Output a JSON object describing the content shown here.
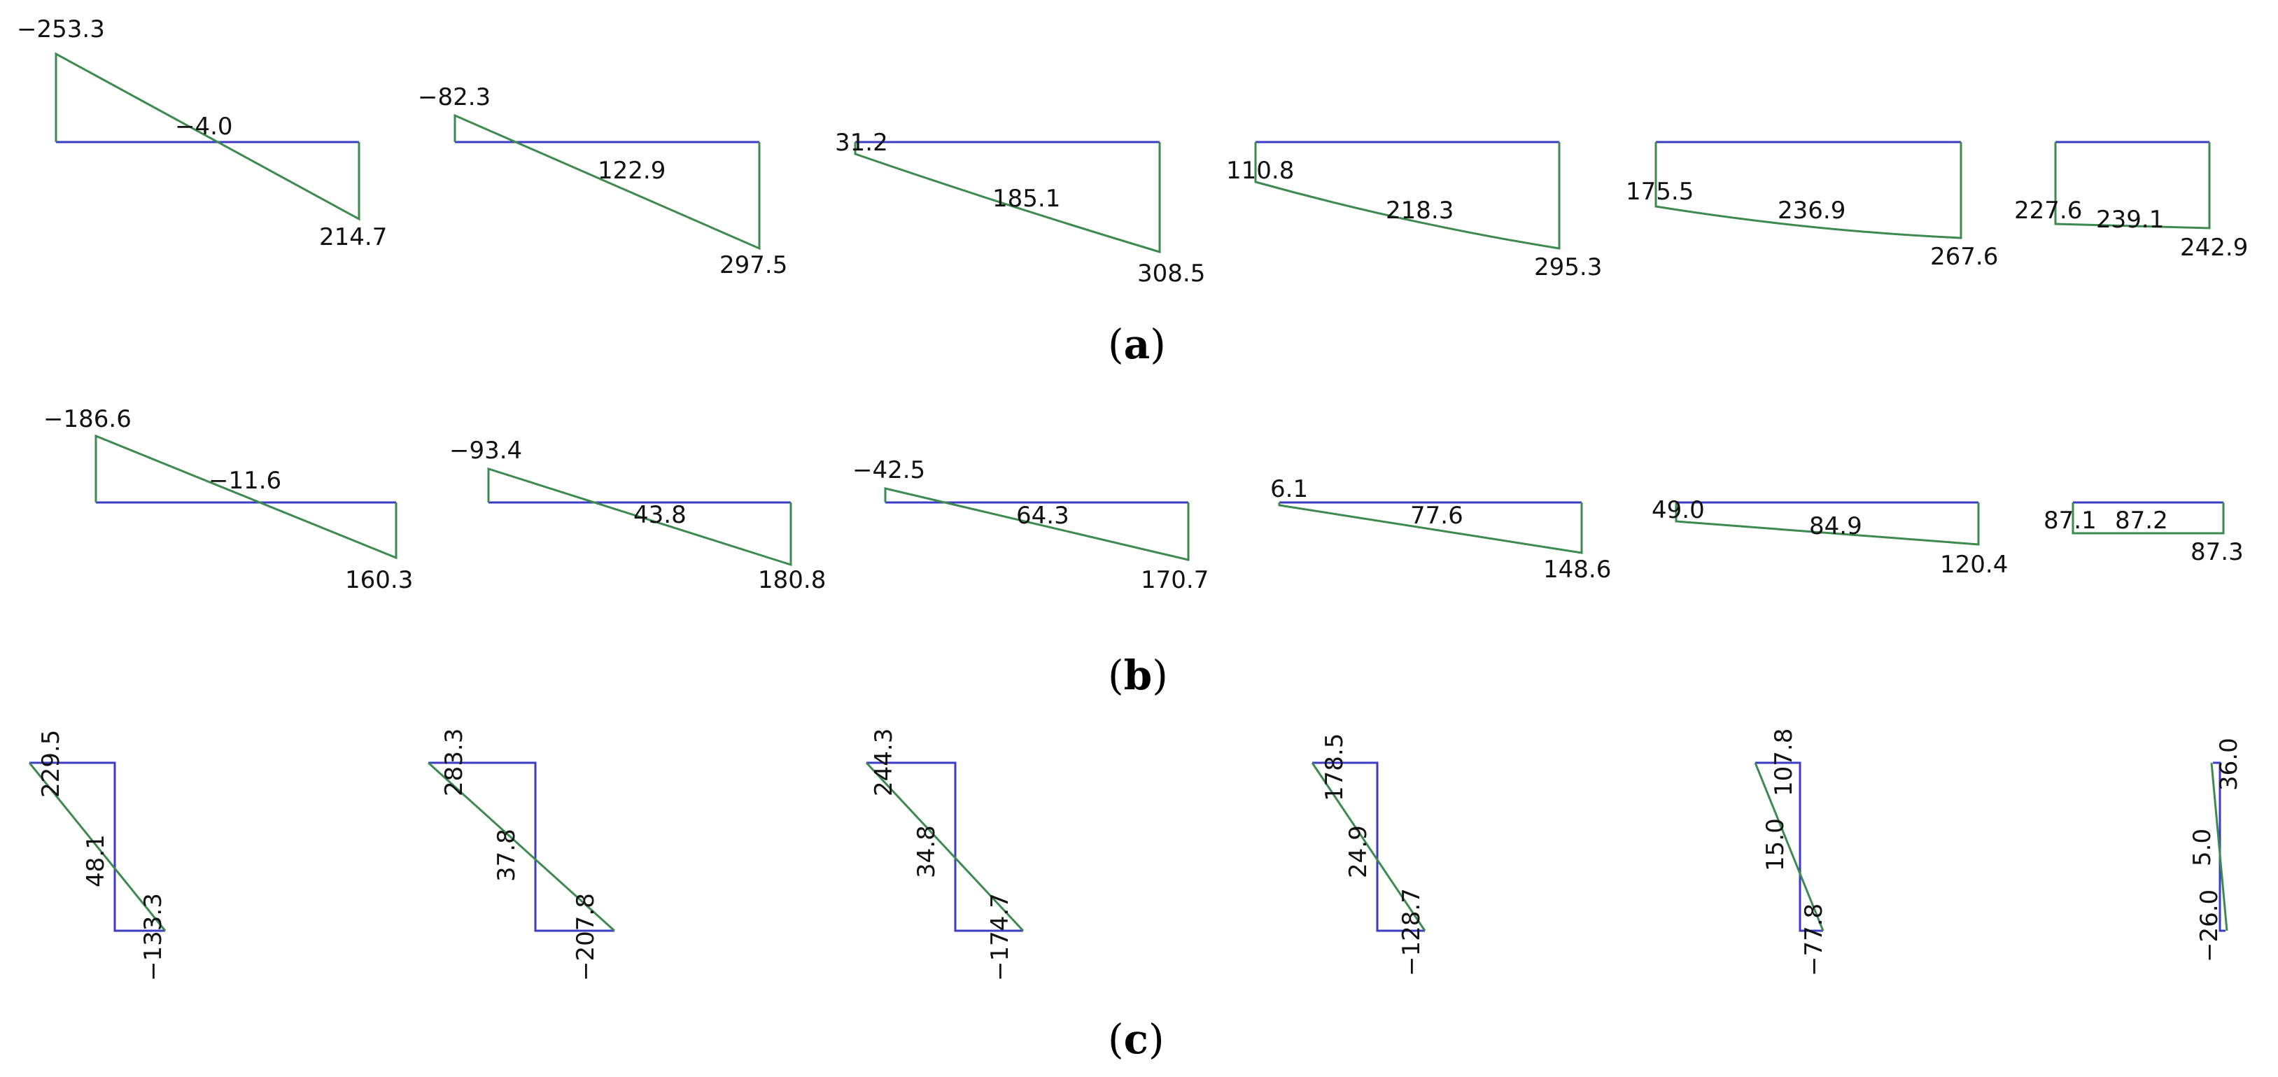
{
  "colors": {
    "baseline": "#3b3bc4",
    "diagram": "#3d8a4f",
    "text": "#111111"
  },
  "panels": [
    {
      "label": "a",
      "members": [
        {
          "left": "−253.3",
          "mid": "−4.0",
          "right": "214.7"
        },
        {
          "left": "−82.3",
          "mid": "122.9",
          "right": "297.5"
        },
        {
          "left": "31.2",
          "mid": "185.1",
          "right": "308.5"
        },
        {
          "left": "110.8",
          "mid": "218.3",
          "right": "295.3"
        },
        {
          "left": "175.5",
          "mid": "236.9",
          "right": "267.6"
        },
        {
          "left": "227.6",
          "mid": "239.1",
          "right": "242.9"
        }
      ]
    },
    {
      "label": "b",
      "members": [
        {
          "left": "−186.6",
          "mid": "−11.6",
          "right": "160.3"
        },
        {
          "left": "−93.4",
          "mid": "43.8",
          "right": "180.8"
        },
        {
          "left": "−42.5",
          "mid": "64.3",
          "right": "170.7"
        },
        {
          "left": "6.1",
          "mid": "77.6",
          "right": "148.6"
        },
        {
          "left": "49.0",
          "mid": "84.9",
          "right": "120.4"
        },
        {
          "left": "87.1",
          "mid": "87.2",
          "right": "87.3"
        }
      ]
    },
    {
      "label": "c",
      "members": [
        {
          "top": "229.5",
          "mid": "48.1",
          "bottom": "−133.3"
        },
        {
          "top": "283.3",
          "mid": "37.8",
          "bottom": "−207.8"
        },
        {
          "top": "244.3",
          "mid": "34.8",
          "bottom": "−174.7"
        },
        {
          "top": "178.5",
          "mid": "24.9",
          "bottom": "−128.7"
        },
        {
          "top": "107.8",
          "mid": "15.0",
          "bottom": "−77.8"
        },
        {
          "top": "36.0",
          "mid": "5.0",
          "bottom": "−26.0"
        }
      ]
    }
  ]
}
